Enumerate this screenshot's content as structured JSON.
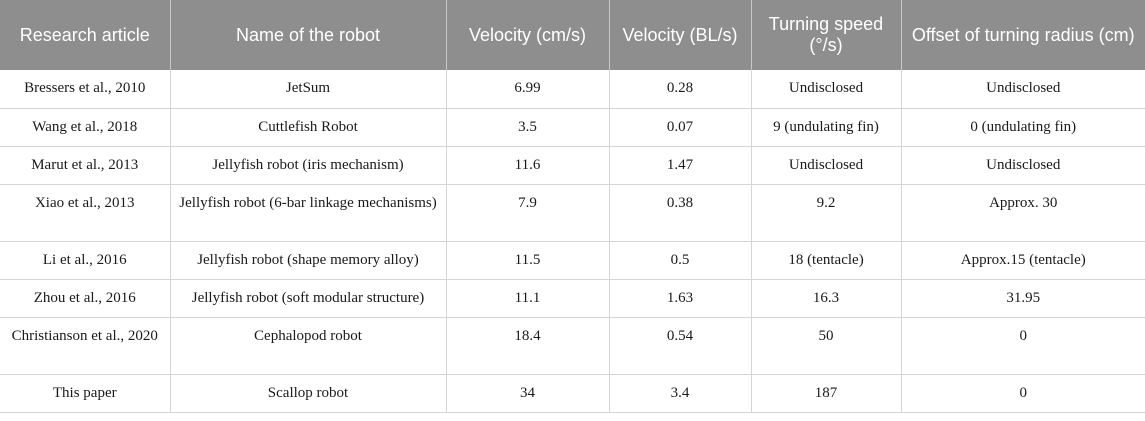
{
  "table": {
    "headers": [
      "Research article",
      "Name of the robot",
      "Velocity (cm/s)",
      "Velocity (BL/s)",
      "Turning speed (°/s)",
      "Offset of turning radius (cm)"
    ],
    "rows": [
      [
        "Bressers et al., 2010",
        "JetSum",
        "6.99",
        "0.28",
        "Undisclosed",
        "Undisclosed"
      ],
      [
        "Wang et al., 2018",
        "Cuttlefish Robot",
        "3.5",
        "0.07",
        "9 (undulating fin)",
        "0 (undulating fin)"
      ],
      [
        "Marut et al., 2013",
        "Jellyfish robot (iris mechanism)",
        "11.6",
        "1.47",
        "Undisclosed",
        "Undisclosed"
      ],
      [
        "Xiao et al., 2013",
        "Jellyfish robot (6-bar linkage mechanisms)",
        "7.9",
        "0.38",
        "9.2",
        "Approx. 30"
      ],
      [
        "Li et al., 2016",
        "Jellyfish robot (shape memory alloy)",
        "11.5",
        "0.5",
        "18 (tentacle)",
        "Approx.15 (tentacle)"
      ],
      [
        "Zhou et al., 2016",
        "Jellyfish robot (soft modular structure)",
        "11.1",
        "1.63",
        "16.3",
        "31.95"
      ],
      [
        "Christianson et al., 2020",
        "Cephalopod robot",
        "18.4",
        "0.54",
        "50",
        "0"
      ],
      [
        "This paper",
        "Scallop robot",
        "34",
        "3.4",
        "187",
        "0"
      ]
    ]
  },
  "colors": {
    "header_bg": "#8e8e8e",
    "header_text": "#ffffff",
    "grid": "#d4d4d4"
  }
}
